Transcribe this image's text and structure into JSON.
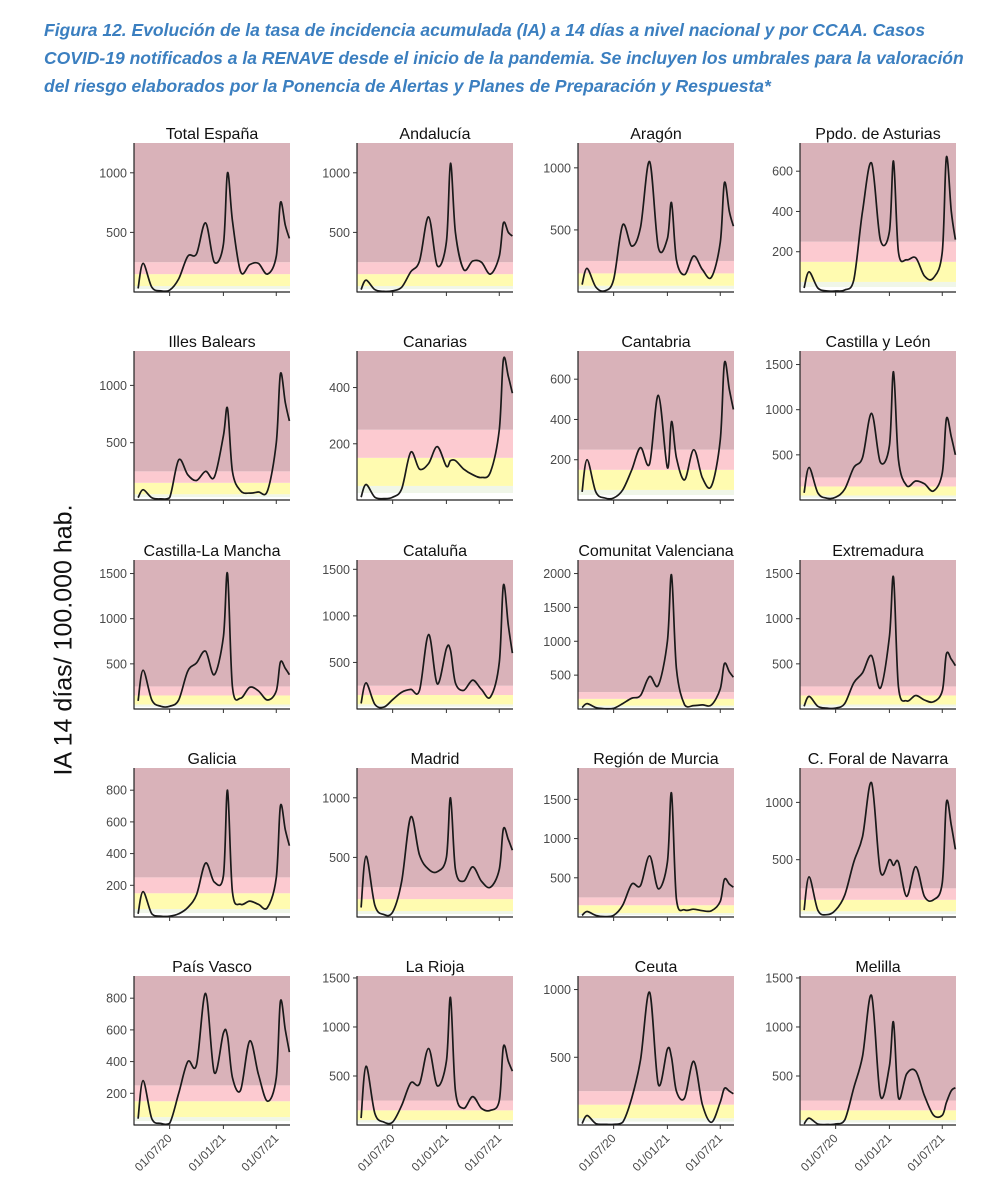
{
  "caption": "Figura 12. Evolución de la tasa de incidencia acumulada (IA) a 14 días a nivel nacional y por CCAA. Casos COVID-19 notificados a la RENAVE desde el inicio de la pandemia. Se incluyen los umbrales para la valoración del riesgo elaborados por la Ponencia de Alertas y Planes de Preparación y Respuesta*",
  "colors": {
    "caption": "#3b7fc0",
    "very_high": "#d9b2b9",
    "high": "#fccad0",
    "medium": "#fffbb0",
    "low": "#f0f6e8",
    "line": "#1a1a1a"
  },
  "chart_data": {
    "type": "line",
    "ylabel": "IA 14 días/ 100.000 hab.",
    "x_range": [
      "2020-03-01",
      "2021-08-17"
    ],
    "x_ticks": [
      "01/07/20",
      "01/01/21",
      "01/07/21"
    ],
    "risk_thresholds": [
      0,
      25,
      50,
      150,
      250
    ],
    "points_x": [
      "2020-03-15",
      "2020-04-01",
      "2020-05-01",
      "2020-06-01",
      "2020-07-01",
      "2020-08-01",
      "2020-09-01",
      "2020-10-01",
      "2020-11-01",
      "2020-12-01",
      "2021-01-01",
      "2021-01-15",
      "2021-02-01",
      "2021-03-01",
      "2021-04-01",
      "2021-05-01",
      "2021-06-01",
      "2021-07-01",
      "2021-07-15",
      "2021-08-01",
      "2021-08-15"
    ],
    "series": [
      {
        "name": "Total España",
        "ylim": [
          0,
          1250
        ],
        "ticks": [
          500,
          1000
        ],
        "values": [
          30,
          240,
          40,
          10,
          15,
          110,
          300,
          320,
          580,
          250,
          400,
          1000,
          600,
          170,
          230,
          240,
          150,
          300,
          750,
          560,
          450
        ]
      },
      {
        "name": "Andalucía",
        "ylim": [
          0,
          1250
        ],
        "ticks": [
          500,
          1000
        ],
        "values": [
          20,
          100,
          20,
          5,
          10,
          40,
          170,
          260,
          630,
          220,
          420,
          1080,
          500,
          190,
          260,
          250,
          150,
          300,
          580,
          500,
          470
        ]
      },
      {
        "name": "Aragón",
        "ylim": [
          0,
          1200
        ],
        "ticks": [
          500,
          1000
        ],
        "values": [
          60,
          190,
          40,
          10,
          100,
          540,
          370,
          520,
          1050,
          360,
          430,
          720,
          260,
          140,
          290,
          180,
          120,
          400,
          880,
          650,
          530
        ]
      },
      {
        "name": "Ppdo. de Asturias",
        "ylim": [
          0,
          740
        ],
        "ticks": [
          200,
          400,
          600
        ],
        "values": [
          20,
          100,
          20,
          5,
          5,
          10,
          60,
          400,
          640,
          260,
          300,
          650,
          200,
          160,
          170,
          80,
          70,
          200,
          670,
          400,
          260
        ]
      },
      {
        "name": "Illes Balears",
        "ylim": [
          0,
          1300
        ],
        "ticks": [
          500,
          1000
        ],
        "values": [
          20,
          90,
          20,
          10,
          20,
          350,
          220,
          170,
          250,
          200,
          560,
          800,
          250,
          80,
          60,
          70,
          80,
          500,
          1100,
          850,
          690
        ]
      },
      {
        "name": "Canarias",
        "ylim": [
          0,
          530
        ],
        "ticks": [
          200,
          400
        ],
        "values": [
          10,
          55,
          10,
          5,
          10,
          40,
          170,
          110,
          130,
          190,
          120,
          140,
          140,
          110,
          90,
          80,
          100,
          250,
          500,
          440,
          380
        ]
      },
      {
        "name": "Cantabria",
        "ylim": [
          0,
          740
        ],
        "ticks": [
          200,
          400,
          600
        ],
        "values": [
          40,
          200,
          40,
          10,
          10,
          50,
          150,
          260,
          180,
          520,
          160,
          390,
          210,
          100,
          250,
          110,
          70,
          300,
          680,
          550,
          450
        ]
      },
      {
        "name": "Castilla y León",
        "ylim": [
          0,
          1650
        ],
        "ticks": [
          500,
          1000,
          1500
        ],
        "values": [
          80,
          360,
          80,
          20,
          30,
          120,
          360,
          470,
          960,
          420,
          600,
          1420,
          450,
          160,
          210,
          180,
          100,
          300,
          900,
          700,
          500
        ]
      },
      {
        "name": "Castilla-La Mancha",
        "ylim": [
          0,
          1650
        ],
        "ticks": [
          500,
          1000,
          1500
        ],
        "values": [
          90,
          430,
          100,
          30,
          30,
          100,
          420,
          510,
          640,
          380,
          800,
          1500,
          250,
          120,
          240,
          200,
          100,
          200,
          520,
          450,
          380
        ]
      },
      {
        "name": "Cataluña",
        "ylim": [
          0,
          1600
        ],
        "ticks": [
          500,
          1000,
          1500
        ],
        "values": [
          60,
          280,
          50,
          20,
          100,
          180,
          210,
          200,
          800,
          270,
          650,
          630,
          280,
          200,
          310,
          210,
          130,
          500,
          1330,
          900,
          600
        ]
      },
      {
        "name": "Comunitat Valenciana",
        "ylim": [
          0,
          2200
        ],
        "ticks": [
          500,
          1000,
          1500,
          2000
        ],
        "values": [
          20,
          80,
          20,
          5,
          10,
          80,
          160,
          200,
          480,
          350,
          1000,
          1980,
          600,
          60,
          50,
          60,
          60,
          300,
          670,
          550,
          470
        ]
      },
      {
        "name": "Extremadura",
        "ylim": [
          0,
          1650
        ],
        "ticks": [
          500,
          1000,
          1500
        ],
        "values": [
          30,
          140,
          30,
          10,
          10,
          60,
          290,
          400,
          590,
          230,
          800,
          1460,
          250,
          90,
          150,
          100,
          80,
          200,
          610,
          550,
          480
        ]
      },
      {
        "name": "Galicia",
        "ylim": [
          0,
          940
        ],
        "ticks": [
          200,
          400,
          600,
          800
        ],
        "values": [
          20,
          160,
          20,
          5,
          5,
          20,
          60,
          140,
          340,
          220,
          260,
          800,
          160,
          80,
          100,
          80,
          60,
          250,
          700,
          550,
          450
        ]
      },
      {
        "name": "Madrid",
        "ylim": [
          0,
          1250
        ],
        "ticks": [
          500,
          1000
        ],
        "values": [
          80,
          510,
          100,
          20,
          40,
          300,
          840,
          520,
          400,
          380,
          500,
          1000,
          400,
          300,
          420,
          300,
          250,
          400,
          740,
          650,
          560
        ]
      },
      {
        "name": "Región de Murcia",
        "ylim": [
          0,
          1900
        ],
        "ticks": [
          500,
          1000,
          1500
        ],
        "values": [
          20,
          70,
          20,
          5,
          20,
          150,
          420,
          400,
          780,
          360,
          700,
          1580,
          230,
          90,
          100,
          80,
          80,
          200,
          480,
          420,
          380
        ]
      },
      {
        "name": "C. Foral de Navarra",
        "ylim": [
          0,
          1300
        ],
        "ticks": [
          500,
          1000
        ],
        "values": [
          60,
          350,
          60,
          20,
          60,
          190,
          480,
          700,
          1170,
          400,
          500,
          450,
          480,
          180,
          440,
          180,
          150,
          300,
          1000,
          800,
          590
        ]
      },
      {
        "name": "País Vasco",
        "ylim": [
          0,
          940
        ],
        "ticks": [
          200,
          400,
          600,
          800
        ],
        "values": [
          40,
          280,
          40,
          10,
          10,
          200,
          400,
          380,
          830,
          330,
          580,
          560,
          300,
          220,
          530,
          320,
          150,
          300,
          780,
          600,
          460
        ]
      },
      {
        "name": "La Rioja",
        "ylim": [
          0,
          1520
        ],
        "ticks": [
          500,
          1000,
          1500
        ],
        "values": [
          70,
          600,
          120,
          30,
          30,
          200,
          430,
          420,
          780,
          400,
          650,
          1300,
          350,
          170,
          290,
          170,
          150,
          250,
          800,
          650,
          550
        ]
      },
      {
        "name": "Ceuta",
        "ylim": [
          0,
          1100
        ],
        "ticks": [
          500,
          1000
        ],
        "values": [
          10,
          70,
          10,
          5,
          5,
          20,
          200,
          480,
          980,
          300,
          560,
          500,
          250,
          200,
          470,
          150,
          20,
          170,
          270,
          250,
          230
        ]
      },
      {
        "name": "Melilla",
        "ylim": [
          0,
          1520
        ],
        "ticks": [
          500,
          1000,
          1500
        ],
        "values": [
          10,
          70,
          10,
          5,
          10,
          50,
          380,
          700,
          1320,
          300,
          600,
          1050,
          280,
          520,
          550,
          300,
          100,
          100,
          230,
          350,
          380
        ]
      }
    ]
  }
}
